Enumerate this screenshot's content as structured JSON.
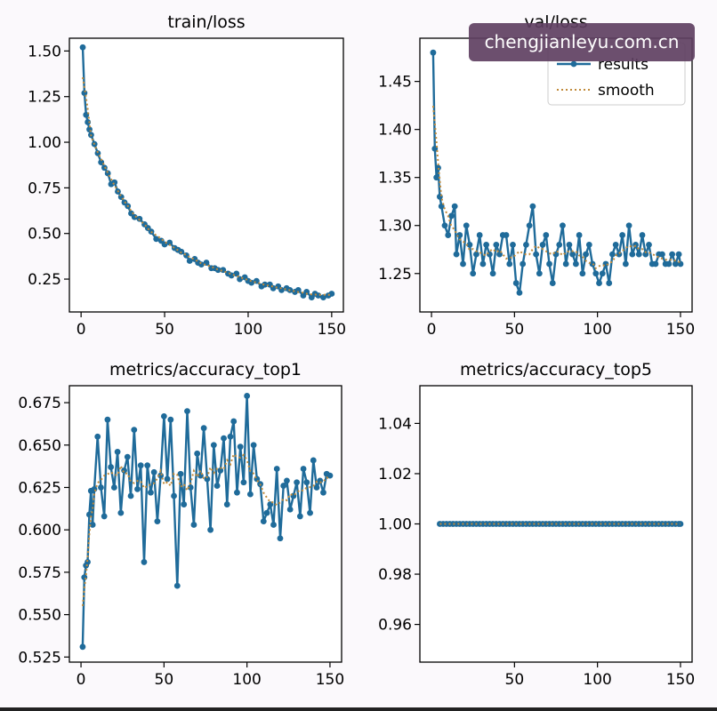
{
  "watermark": "chengjianleyu.com.cn",
  "colors": {
    "series": "#1f6b9a",
    "smooth": "#c08a3a",
    "axis": "#000000",
    "background": "#fbf9fc"
  },
  "legend": {
    "results": "results",
    "smooth": "smooth",
    "placement": "upper right"
  },
  "chart_data": [
    {
      "type": "line",
      "title": "train/loss",
      "xlim": [
        -7,
        157
      ],
      "ylim": [
        0.07,
        1.57
      ],
      "xticks": [
        0,
        50,
        100,
        150
      ],
      "yticks": [
        0.25,
        0.5,
        0.75,
        1.0,
        1.25,
        1.5
      ],
      "ytick_labels": [
        "0.25",
        "0.50",
        "0.75",
        "1.00",
        "1.25",
        "1.50"
      ],
      "legend": false,
      "x": [
        1,
        2,
        3,
        4,
        5,
        6,
        8,
        10,
        12,
        14,
        16,
        18,
        20,
        22,
        24,
        26,
        28,
        30,
        32,
        35,
        38,
        40,
        42,
        45,
        48,
        50,
        53,
        56,
        58,
        60,
        63,
        65,
        68,
        70,
        72,
        75,
        78,
        80,
        82,
        85,
        88,
        90,
        93,
        95,
        98,
        100,
        102,
        105,
        108,
        110,
        113,
        115,
        118,
        120,
        123,
        125,
        128,
        130,
        133,
        135,
        138,
        140,
        142,
        145,
        148,
        150
      ],
      "series": [
        {
          "name": "results",
          "values": [
            1.52,
            1.27,
            1.15,
            1.11,
            1.07,
            1.04,
            0.99,
            0.94,
            0.89,
            0.86,
            0.83,
            0.77,
            0.78,
            0.73,
            0.7,
            0.67,
            0.65,
            0.61,
            0.59,
            0.58,
            0.55,
            0.53,
            0.51,
            0.47,
            0.46,
            0.44,
            0.45,
            0.42,
            0.41,
            0.4,
            0.38,
            0.35,
            0.36,
            0.34,
            0.33,
            0.34,
            0.31,
            0.31,
            0.3,
            0.3,
            0.28,
            0.27,
            0.28,
            0.25,
            0.26,
            0.24,
            0.23,
            0.24,
            0.21,
            0.22,
            0.22,
            0.2,
            0.21,
            0.19,
            0.2,
            0.19,
            0.18,
            0.19,
            0.16,
            0.18,
            0.15,
            0.17,
            0.16,
            0.15,
            0.16,
            0.17
          ]
        }
      ]
    },
    {
      "type": "line",
      "title": "val/loss",
      "xlim": [
        -7,
        157
      ],
      "ylim": [
        1.21,
        1.495
      ],
      "xticks": [
        0,
        50,
        100,
        150
      ],
      "yticks": [
        1.25,
        1.3,
        1.35,
        1.4,
        1.45
      ],
      "ytick_labels": [
        "1.25",
        "1.30",
        "1.35",
        "1.40",
        "1.45"
      ],
      "legend": true,
      "x": [
        1,
        2,
        3,
        4,
        5,
        6,
        8,
        10,
        12,
        14,
        15,
        17,
        19,
        21,
        23,
        25,
        27,
        29,
        31,
        33,
        35,
        37,
        39,
        41,
        43,
        45,
        47,
        49,
        51,
        53,
        55,
        57,
        59,
        61,
        63,
        65,
        67,
        69,
        71,
        73,
        75,
        77,
        79,
        81,
        83,
        85,
        87,
        89,
        91,
        93,
        95,
        97,
        99,
        101,
        103,
        105,
        107,
        109,
        111,
        113,
        115,
        117,
        119,
        121,
        123,
        125,
        127,
        129,
        131,
        133,
        135,
        137,
        139,
        141,
        143,
        145,
        147,
        149,
        150
      ],
      "series": [
        {
          "name": "results",
          "values": [
            1.48,
            1.38,
            1.35,
            1.36,
            1.33,
            1.32,
            1.3,
            1.29,
            1.31,
            1.32,
            1.27,
            1.29,
            1.26,
            1.3,
            1.28,
            1.25,
            1.27,
            1.29,
            1.26,
            1.28,
            1.27,
            1.25,
            1.28,
            1.27,
            1.29,
            1.29,
            1.26,
            1.28,
            1.24,
            1.23,
            1.26,
            1.28,
            1.3,
            1.32,
            1.27,
            1.25,
            1.28,
            1.29,
            1.26,
            1.24,
            1.27,
            1.28,
            1.3,
            1.26,
            1.28,
            1.27,
            1.26,
            1.29,
            1.25,
            1.27,
            1.28,
            1.26,
            1.25,
            1.24,
            1.25,
            1.26,
            1.24,
            1.27,
            1.28,
            1.27,
            1.29,
            1.26,
            1.3,
            1.27,
            1.28,
            1.27,
            1.29,
            1.27,
            1.28,
            1.26,
            1.26,
            1.27,
            1.27,
            1.26,
            1.26,
            1.27,
            1.26,
            1.27,
            1.26
          ]
        }
      ]
    },
    {
      "type": "line",
      "title": "metrics/accuracy_top1",
      "xlim": [
        -7,
        157
      ],
      "ylim": [
        0.522,
        0.685
      ],
      "xticks": [
        0,
        50,
        100,
        150
      ],
      "yticks": [
        0.525,
        0.55,
        0.575,
        0.6,
        0.625,
        0.65,
        0.675
      ],
      "ytick_labels": [
        "0.525",
        "0.550",
        "0.575",
        "0.600",
        "0.625",
        "0.650",
        "0.675"
      ],
      "legend": false,
      "x": [
        1,
        2,
        3,
        4,
        5,
        6,
        7,
        8,
        10,
        12,
        14,
        16,
        18,
        20,
        22,
        24,
        26,
        28,
        30,
        32,
        34,
        36,
        38,
        40,
        42,
        44,
        46,
        48,
        50,
        52,
        54,
        56,
        58,
        60,
        62,
        64,
        66,
        68,
        70,
        72,
        74,
        76,
        78,
        80,
        82,
        84,
        86,
        88,
        90,
        92,
        94,
        96,
        98,
        100,
        102,
        104,
        106,
        108,
        110,
        112,
        114,
        116,
        118,
        120,
        122,
        124,
        126,
        128,
        130,
        132,
        134,
        136,
        138,
        140,
        142,
        144,
        146,
        148,
        150
      ],
      "series": [
        {
          "name": "results",
          "values": [
            0.531,
            0.572,
            0.579,
            0.581,
            0.609,
            0.623,
            0.603,
            0.624,
            0.655,
            0.625,
            0.608,
            0.665,
            0.637,
            0.625,
            0.646,
            0.61,
            0.635,
            0.643,
            0.62,
            0.659,
            0.624,
            0.638,
            0.581,
            0.638,
            0.622,
            0.634,
            0.605,
            0.632,
            0.667,
            0.63,
            0.665,
            0.62,
            0.567,
            0.633,
            0.615,
            0.67,
            0.625,
            0.603,
            0.645,
            0.632,
            0.66,
            0.63,
            0.6,
            0.65,
            0.626,
            0.635,
            0.654,
            0.615,
            0.655,
            0.664,
            0.622,
            0.649,
            0.628,
            0.679,
            0.621,
            0.65,
            0.63,
            0.627,
            0.605,
            0.61,
            0.615,
            0.603,
            0.636,
            0.595,
            0.626,
            0.629,
            0.612,
            0.62,
            0.628,
            0.608,
            0.636,
            0.628,
            0.61,
            0.641,
            0.625,
            0.629,
            0.622,
            0.633,
            0.632
          ]
        }
      ]
    },
    {
      "type": "line",
      "title": "metrics/accuracy_top5",
      "xlim": [
        -7,
        157
      ],
      "ylim": [
        0.945,
        1.055
      ],
      "xticks": [
        50,
        100,
        150
      ],
      "yticks": [
        0.96,
        0.98,
        1.0,
        1.02,
        1.04
      ],
      "ytick_labels": [
        "0.96",
        "0.98",
        "1.00",
        "1.02",
        "1.04"
      ],
      "legend": false,
      "x": [
        5,
        7,
        9,
        11,
        13,
        15,
        17,
        19,
        21,
        23,
        25,
        27,
        29,
        31,
        33,
        35,
        37,
        39,
        41,
        43,
        45,
        47,
        49,
        51,
        53,
        55,
        57,
        59,
        61,
        63,
        65,
        67,
        69,
        71,
        73,
        75,
        77,
        79,
        81,
        83,
        85,
        87,
        89,
        91,
        93,
        95,
        97,
        99,
        101,
        103,
        105,
        107,
        109,
        111,
        113,
        115,
        117,
        119,
        121,
        123,
        125,
        127,
        129,
        131,
        133,
        135,
        137,
        139,
        141,
        143,
        145,
        147,
        149,
        150
      ],
      "series": [
        {
          "name": "results",
          "values": [
            1.0,
            1.0,
            1.0,
            1.0,
            1.0,
            1.0,
            1.0,
            1.0,
            1.0,
            1.0,
            1.0,
            1.0,
            1.0,
            1.0,
            1.0,
            1.0,
            1.0,
            1.0,
            1.0,
            1.0,
            1.0,
            1.0,
            1.0,
            1.0,
            1.0,
            1.0,
            1.0,
            1.0,
            1.0,
            1.0,
            1.0,
            1.0,
            1.0,
            1.0,
            1.0,
            1.0,
            1.0,
            1.0,
            1.0,
            1.0,
            1.0,
            1.0,
            1.0,
            1.0,
            1.0,
            1.0,
            1.0,
            1.0,
            1.0,
            1.0,
            1.0,
            1.0,
            1.0,
            1.0,
            1.0,
            1.0,
            1.0,
            1.0,
            1.0,
            1.0,
            1.0,
            1.0,
            1.0,
            1.0,
            1.0,
            1.0,
            1.0,
            1.0,
            1.0,
            1.0,
            1.0,
            1.0,
            1.0,
            1.0
          ]
        }
      ]
    }
  ]
}
